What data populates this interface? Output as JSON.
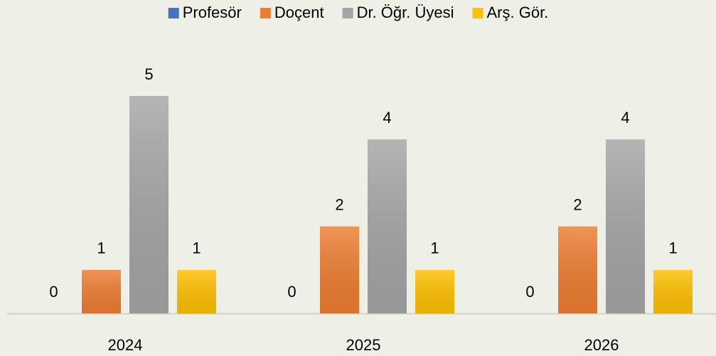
{
  "chart_data": {
    "type": "bar",
    "categories": [
      "2024",
      "2025",
      "2026"
    ],
    "series": [
      {
        "name": "Profesör",
        "color": "#4472c4",
        "values": [
          0,
          0,
          0
        ]
      },
      {
        "name": "Doçent",
        "color": "#ed7d31",
        "values": [
          1,
          2,
          2
        ]
      },
      {
        "name": "Dr. Öğr. Üyesi",
        "color": "#a5a5a5",
        "values": [
          5,
          4,
          4
        ]
      },
      {
        "name": "Arş. Gör.",
        "color": "#ffc000",
        "values": [
          1,
          1,
          1
        ]
      }
    ],
    "ylim": [
      0,
      5
    ],
    "legend": "top"
  }
}
